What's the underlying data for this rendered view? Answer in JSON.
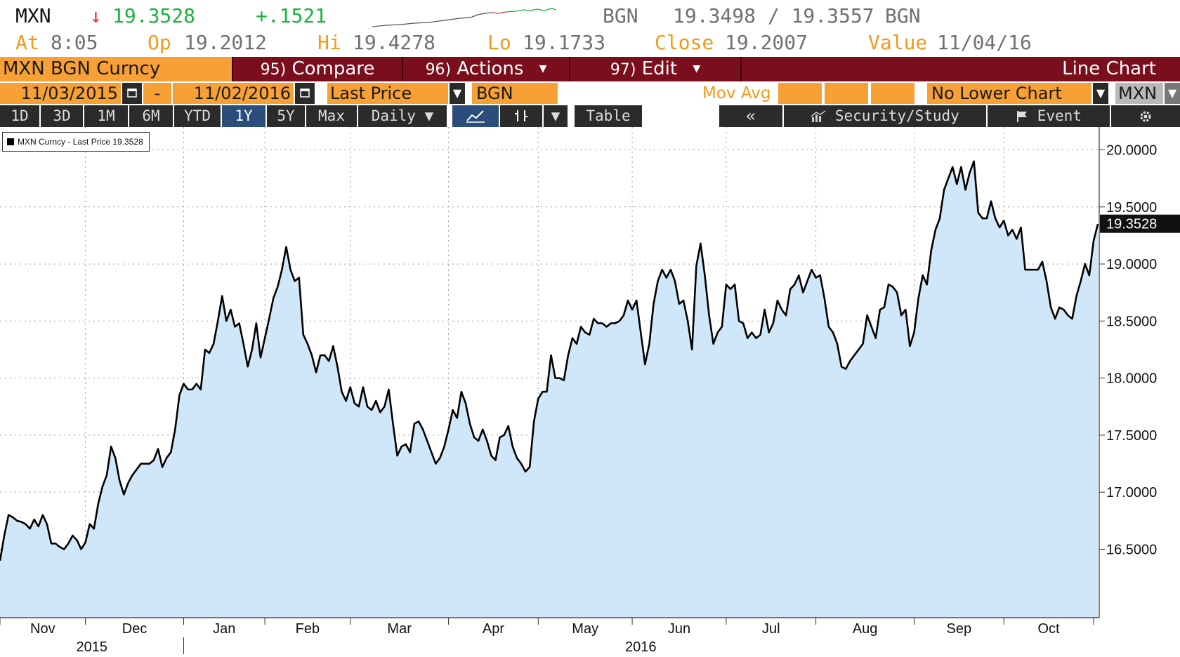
{
  "quote": {
    "ticker": "MXN",
    "arrow": "↓",
    "last": "19.3528",
    "change": "+.1521",
    "source": "BGN",
    "bid_ask": "19.3498 / 19.3557",
    "source2": "BGN",
    "at_label": "At",
    "at_time": "8:05",
    "open_label": "Op",
    "open": "19.2012",
    "high_label": "Hi",
    "high": "19.4278",
    "low_label": "Lo",
    "low": "19.1733",
    "close_label": "Close",
    "close": "19.2007",
    "value_label": "Value",
    "value_date": "11/04/16"
  },
  "toolbar": {
    "security": "MXN BGN Curncy",
    "compare_num": "95)",
    "compare": "Compare",
    "actions_num": "96)",
    "actions": "Actions",
    "edit_num": "97)",
    "edit": "Edit",
    "chart_type": "Line Chart"
  },
  "controls": {
    "start_date": "11/03/2015",
    "dash": "-",
    "end_date": "11/02/2016",
    "field": "Last Price",
    "source": "BGN",
    "mov_avg": "Mov Avg",
    "lower_chart": "No Lower Chart",
    "currency": "MXN"
  },
  "periods": {
    "p1d": "1D",
    "p3d": "3D",
    "p1m": "1M",
    "p6m": "6M",
    "pytd": "YTD",
    "p1y": "1Y",
    "p5y": "5Y",
    "pmax": "Max",
    "freq": "Daily ▼",
    "table": "Table",
    "back": "«",
    "security_study": "Security/Study",
    "event": "Event"
  },
  "colors": {
    "accent_orange": "#f7a035",
    "toolbar_red": "#7a0e1d",
    "area_fill": "#cfe7f9",
    "line": "#000000",
    "up_green": "#19b43b",
    "down_red": "#e3342f"
  },
  "icons": {
    "calendar": "calendar-icon",
    "line_chart": "line-chart-icon",
    "bars": "bar-chart-icon",
    "study": "study-icon",
    "flag": "flag-icon",
    "gear": "gear-icon"
  },
  "chart_data": {
    "type": "area",
    "legend": "MXN Curncy - Last Price 19.3528",
    "last_value_label": "19.3528",
    "y_axis": {
      "min": 15.9,
      "max": 20.2,
      "ticks": [
        "16.5000",
        "17.0000",
        "17.5000",
        "18.0000",
        "18.5000",
        "19.0000",
        "19.5000",
        "20.0000"
      ],
      "tick_values": [
        16.5,
        17.0,
        17.5,
        18.0,
        18.5,
        19.0,
        19.5,
        20.0
      ],
      "side": "right"
    },
    "x_axis": {
      "months": [
        "Nov",
        "Dec",
        "Jan",
        "Feb",
        "Mar",
        "Apr",
        "May",
        "Jun",
        "Jul",
        "Aug",
        "Sep",
        "Oct"
      ],
      "years": [
        "2015",
        "2016"
      ]
    },
    "grid": true,
    "series": [
      {
        "values": [
          16.4,
          16.62,
          16.8,
          16.78,
          16.75,
          16.74,
          16.72,
          16.68,
          16.76,
          16.7,
          16.8,
          16.72,
          16.55,
          16.55,
          16.52,
          16.5,
          16.55,
          16.62,
          16.58,
          16.5,
          16.56,
          16.72,
          16.68,
          16.9,
          17.05,
          17.15,
          17.4,
          17.3,
          17.1,
          16.98,
          17.08,
          17.15,
          17.2,
          17.25,
          17.25,
          17.25,
          17.28,
          17.38,
          17.22,
          17.3,
          17.35,
          17.55,
          17.85,
          17.95,
          17.9,
          17.9,
          17.95,
          17.9,
          18.25,
          18.22,
          18.3,
          18.5,
          18.72,
          18.5,
          18.6,
          18.45,
          18.48,
          18.3,
          18.1,
          18.25,
          18.48,
          18.18,
          18.35,
          18.52,
          18.7,
          18.8,
          18.95,
          19.15,
          18.95,
          18.85,
          18.88,
          18.38,
          18.3,
          18.2,
          18.05,
          18.2,
          18.2,
          18.15,
          18.28,
          18.1,
          17.88,
          17.8,
          17.92,
          17.78,
          17.75,
          17.92,
          17.75,
          17.72,
          17.8,
          17.7,
          17.75,
          17.9,
          17.6,
          17.32,
          17.4,
          17.42,
          17.35,
          17.6,
          17.62,
          17.55,
          17.45,
          17.35,
          17.25,
          17.3,
          17.4,
          17.55,
          17.72,
          17.65,
          17.88,
          17.78,
          17.6,
          17.48,
          17.45,
          17.55,
          17.45,
          17.32,
          17.28,
          17.48,
          17.5,
          17.58,
          17.4,
          17.3,
          17.25,
          17.18,
          17.22,
          17.62,
          17.82,
          17.88,
          17.88,
          18.2,
          18.0,
          18.0,
          17.98,
          18.2,
          18.35,
          18.3,
          18.45,
          18.4,
          18.38,
          18.52,
          18.48,
          18.48,
          18.45,
          18.48,
          18.48,
          18.5,
          18.55,
          18.68,
          18.6,
          18.68,
          18.4,
          18.12,
          18.3,
          18.65,
          18.85,
          18.95,
          18.88,
          18.95,
          18.85,
          18.65,
          18.68,
          18.5,
          18.25,
          18.98,
          19.18,
          18.9,
          18.55,
          18.3,
          18.4,
          18.45,
          18.82,
          18.78,
          18.82,
          18.5,
          18.48,
          18.35,
          18.4,
          18.35,
          18.38,
          18.6,
          18.4,
          18.48,
          18.68,
          18.6,
          18.55,
          18.78,
          18.82,
          18.9,
          18.75,
          18.85,
          18.95,
          18.88,
          18.9,
          18.7,
          18.45,
          18.4,
          18.3,
          18.1,
          18.08,
          18.15,
          18.2,
          18.25,
          18.3,
          18.55,
          18.45,
          18.35,
          18.6,
          18.62,
          18.82,
          18.8,
          18.75,
          18.55,
          18.6,
          18.28,
          18.4,
          18.7,
          18.9,
          18.82,
          19.12,
          19.3,
          19.4,
          19.65,
          19.75,
          19.85,
          19.7,
          19.85,
          19.65,
          19.8,
          19.9,
          19.45,
          19.4,
          19.4,
          19.55,
          19.4,
          19.32,
          19.38,
          19.25,
          19.3,
          19.22,
          19.32,
          18.95,
          18.95,
          18.95,
          18.95,
          19.02,
          18.85,
          18.62,
          18.52,
          18.62,
          18.6,
          18.55,
          18.52,
          18.72,
          18.85,
          19.0,
          18.9,
          19.2,
          19.35
        ]
      }
    ]
  }
}
